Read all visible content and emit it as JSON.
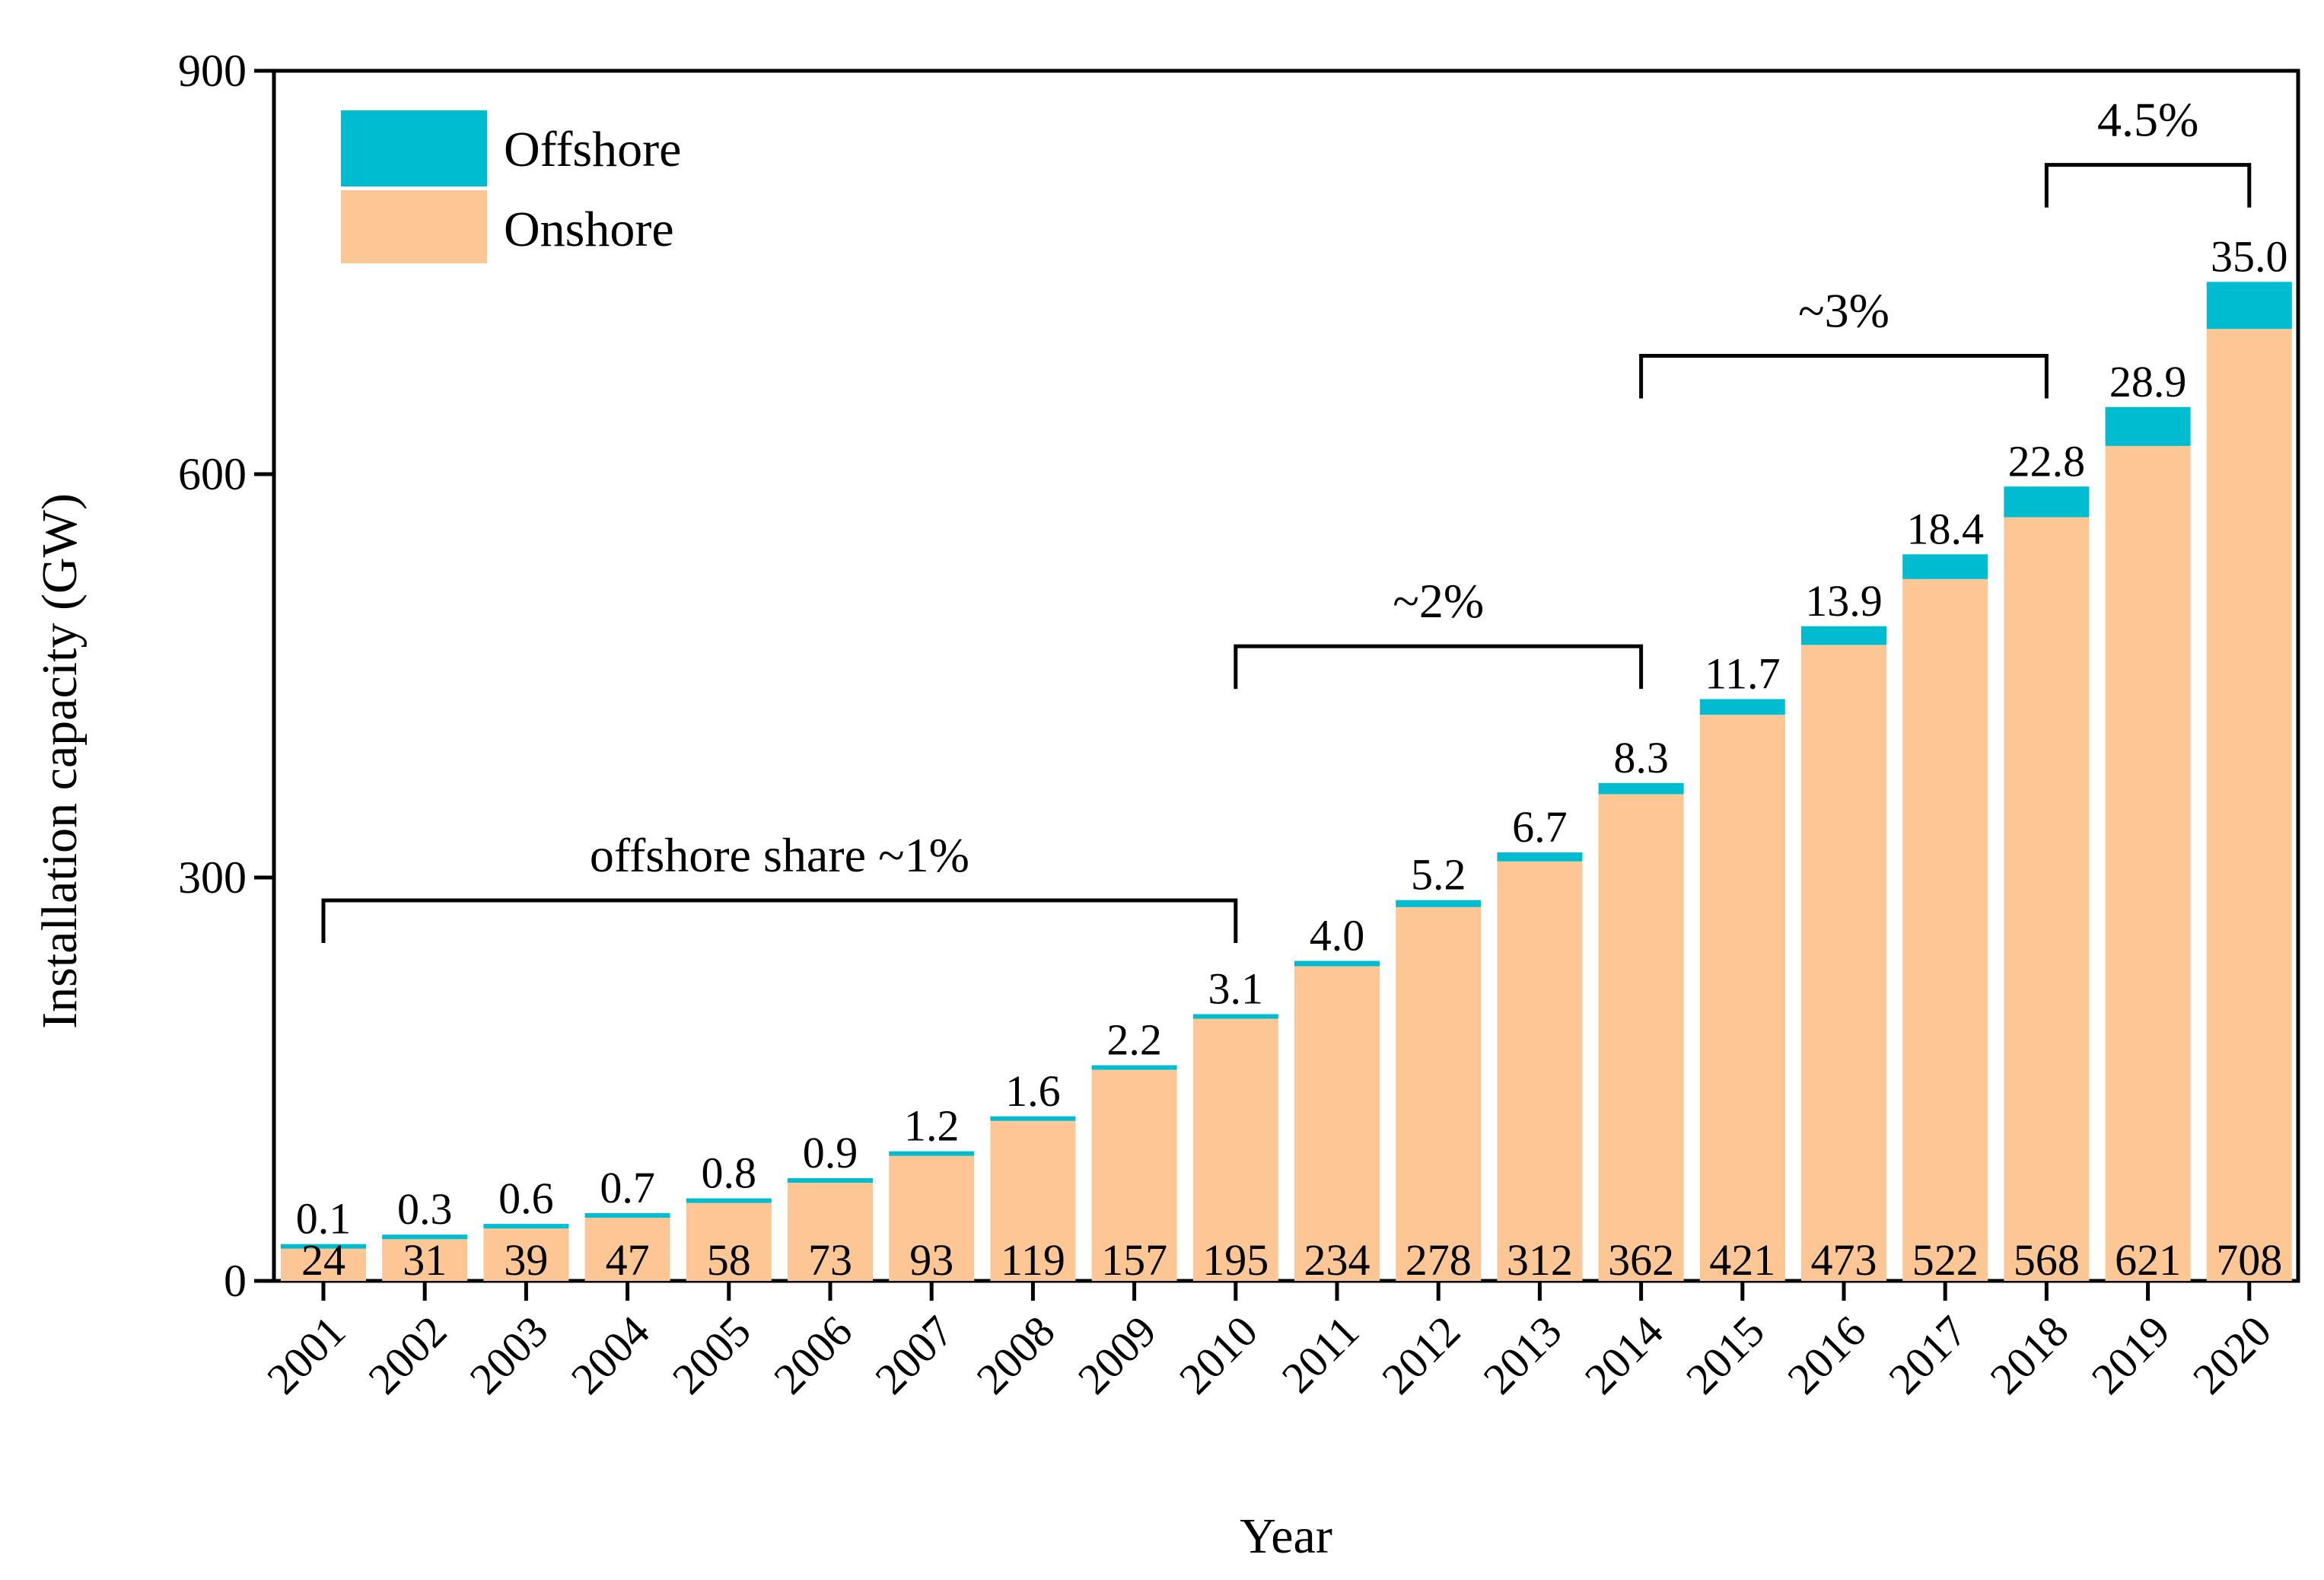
{
  "chart_data": {
    "type": "bar",
    "stacked": true,
    "title": "",
    "xlabel": "Year",
    "ylabel": "Installation capacity (GW)",
    "ylim": [
      0,
      900
    ],
    "yticks": [
      0,
      300,
      600,
      900
    ],
    "categories": [
      "2001",
      "2002",
      "2003",
      "2004",
      "2005",
      "2006",
      "2007",
      "2008",
      "2009",
      "2010",
      "2011",
      "2012",
      "2013",
      "2014",
      "2015",
      "2016",
      "2017",
      "2018",
      "2019",
      "2020"
    ],
    "series": [
      {
        "name": "Onshore",
        "color": "#fcc795",
        "values": [
          24,
          31,
          39,
          47,
          58,
          73,
          93,
          119,
          157,
          195,
          234,
          278,
          312,
          362,
          421,
          473,
          522,
          568,
          621,
          708
        ],
        "labels": [
          "24",
          "31",
          "39",
          "47",
          "58",
          "73",
          "93",
          "119",
          "157",
          "195",
          "234",
          "278",
          "312",
          "362",
          "421",
          "473",
          "522",
          "568",
          "621",
          "708"
        ]
      },
      {
        "name": "Offshore",
        "color": "#00bcd0",
        "values": [
          0.1,
          0.3,
          0.6,
          0.7,
          0.8,
          0.9,
          1.2,
          1.6,
          2.2,
          3.1,
          4.0,
          5.2,
          6.7,
          8.3,
          11.7,
          13.9,
          18.4,
          22.8,
          28.9,
          35.0
        ],
        "labels": [
          "0.1",
          "0.3",
          "0.6",
          "0.7",
          "0.8",
          "0.9",
          "1.2",
          "1.6",
          "2.2",
          "3.1",
          "4.0",
          "5.2",
          "6.7",
          "8.3",
          "11.7",
          "13.9",
          "18.4",
          "22.8",
          "28.9",
          "35.0"
        ]
      }
    ],
    "legend": {
      "position": "top-left",
      "entries": [
        "Offshore",
        "Onshore"
      ]
    },
    "grid": false,
    "annotations": [
      {
        "text": "offshore share ~1%",
        "from": "2001",
        "to": "2010",
        "level": 283
      },
      {
        "text": "~2%",
        "from": "2010",
        "to": "2014",
        "level": 472
      },
      {
        "text": "~3%",
        "from": "2014",
        "to": "2018",
        "level": 688
      },
      {
        "text": "4.5%",
        "from": "2018",
        "to": "2020",
        "level": 830
      }
    ]
  }
}
